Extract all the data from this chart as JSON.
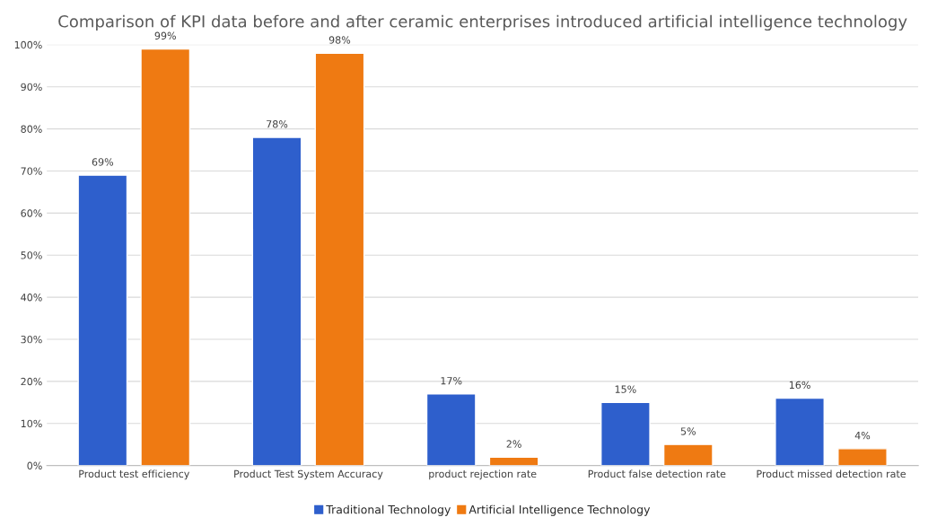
{
  "chart_data": {
    "type": "bar",
    "title": "Comparison of KPI data before and after ceramic enterprises introduced artificial intelligence technology",
    "categories": [
      "Product test efficiency",
      "Product Test System Accuracy",
      "product rejection rate",
      "Product false detection rate",
      "Product missed detection rate"
    ],
    "series": [
      {
        "name": "Traditional Technology",
        "color": "#2e5fcc",
        "values": [
          69,
          78,
          17,
          15,
          16
        ],
        "value_labels": [
          "69%",
          "78%",
          "17%",
          "15%",
          "16%"
        ]
      },
      {
        "name": "Artificial Intelligence Technology",
        "color": "#ef7a12",
        "values": [
          99,
          98,
          2,
          5,
          4
        ],
        "value_labels": [
          "99%",
          "98%",
          "2%",
          "5%",
          "4%"
        ]
      }
    ],
    "ylim": [
      0,
      100
    ],
    "yticks": [
      {
        "value": 0,
        "label": "0%"
      },
      {
        "value": 10,
        "label": "10%"
      },
      {
        "value": 20,
        "label": "20%"
      },
      {
        "value": 30,
        "label": "30%"
      },
      {
        "value": 40,
        "label": "40%"
      },
      {
        "value": 50,
        "label": "50%"
      },
      {
        "value": 60,
        "label": "60%"
      },
      {
        "value": 70,
        "label": "70%"
      },
      {
        "value": 80,
        "label": "80%"
      },
      {
        "value": 90,
        "label": "90%"
      },
      {
        "value": 100,
        "label": "100%"
      }
    ],
    "grid": "y",
    "legend": "bottom"
  }
}
